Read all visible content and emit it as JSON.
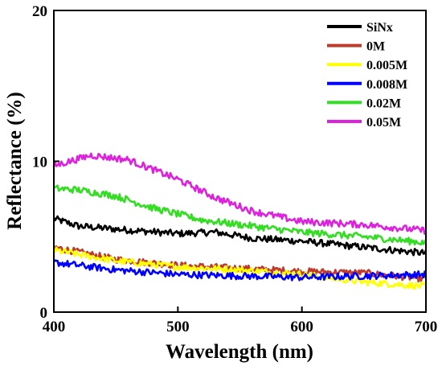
{
  "chart_data": {
    "type": "line",
    "xlabel": "Wavelength (nm)",
    "ylabel": "Reflectance (%)",
    "xlim": [
      400,
      700
    ],
    "ylim": [
      0,
      20
    ],
    "x_ticks": [
      400,
      500,
      600,
      700
    ],
    "y_ticks": [
      0,
      10,
      20
    ],
    "grid": false,
    "legend_position": "top-right",
    "series": [
      {
        "name": "SiNx",
        "color": "#000000",
        "x": [
          400,
          420,
          450,
          500,
          530,
          560,
          600,
          650,
          700
        ],
        "y": [
          6.2,
          5.7,
          5.5,
          5.2,
          5.3,
          4.9,
          4.7,
          4.3,
          3.9
        ]
      },
      {
        "name": "0M",
        "color": "#c0392b",
        "x": [
          400,
          450,
          500,
          550,
          600,
          650,
          700
        ],
        "y": [
          4.3,
          3.5,
          3.1,
          2.9,
          2.7,
          2.6,
          2.2
        ]
      },
      {
        "name": "0.005M",
        "color": "#ffff00",
        "x": [
          400,
          450,
          500,
          550,
          600,
          650,
          700
        ],
        "y": [
          4.1,
          3.4,
          3.0,
          2.8,
          2.5,
          2.0,
          1.7
        ]
      },
      {
        "name": "0.008M",
        "color": "#0000ff",
        "x": [
          400,
          450,
          500,
          550,
          600,
          650,
          700
        ],
        "y": [
          3.3,
          2.8,
          2.5,
          2.4,
          2.3,
          2.4,
          2.5
        ]
      },
      {
        "name": "0.02M",
        "color": "#33dd22",
        "x": [
          400,
          420,
          450,
          480,
          520,
          550,
          600,
          650,
          700
        ],
        "y": [
          8.2,
          8.1,
          7.7,
          6.9,
          6.1,
          5.8,
          5.3,
          5.0,
          4.6
        ]
      },
      {
        "name": "0.05M",
        "color": "#dd22dd",
        "x": [
          400,
          430,
          460,
          500,
          530,
          560,
          600,
          650,
          700
        ],
        "y": [
          9.7,
          10.4,
          10.1,
          8.8,
          7.6,
          6.7,
          6.0,
          5.8,
          5.4
        ]
      }
    ]
  }
}
